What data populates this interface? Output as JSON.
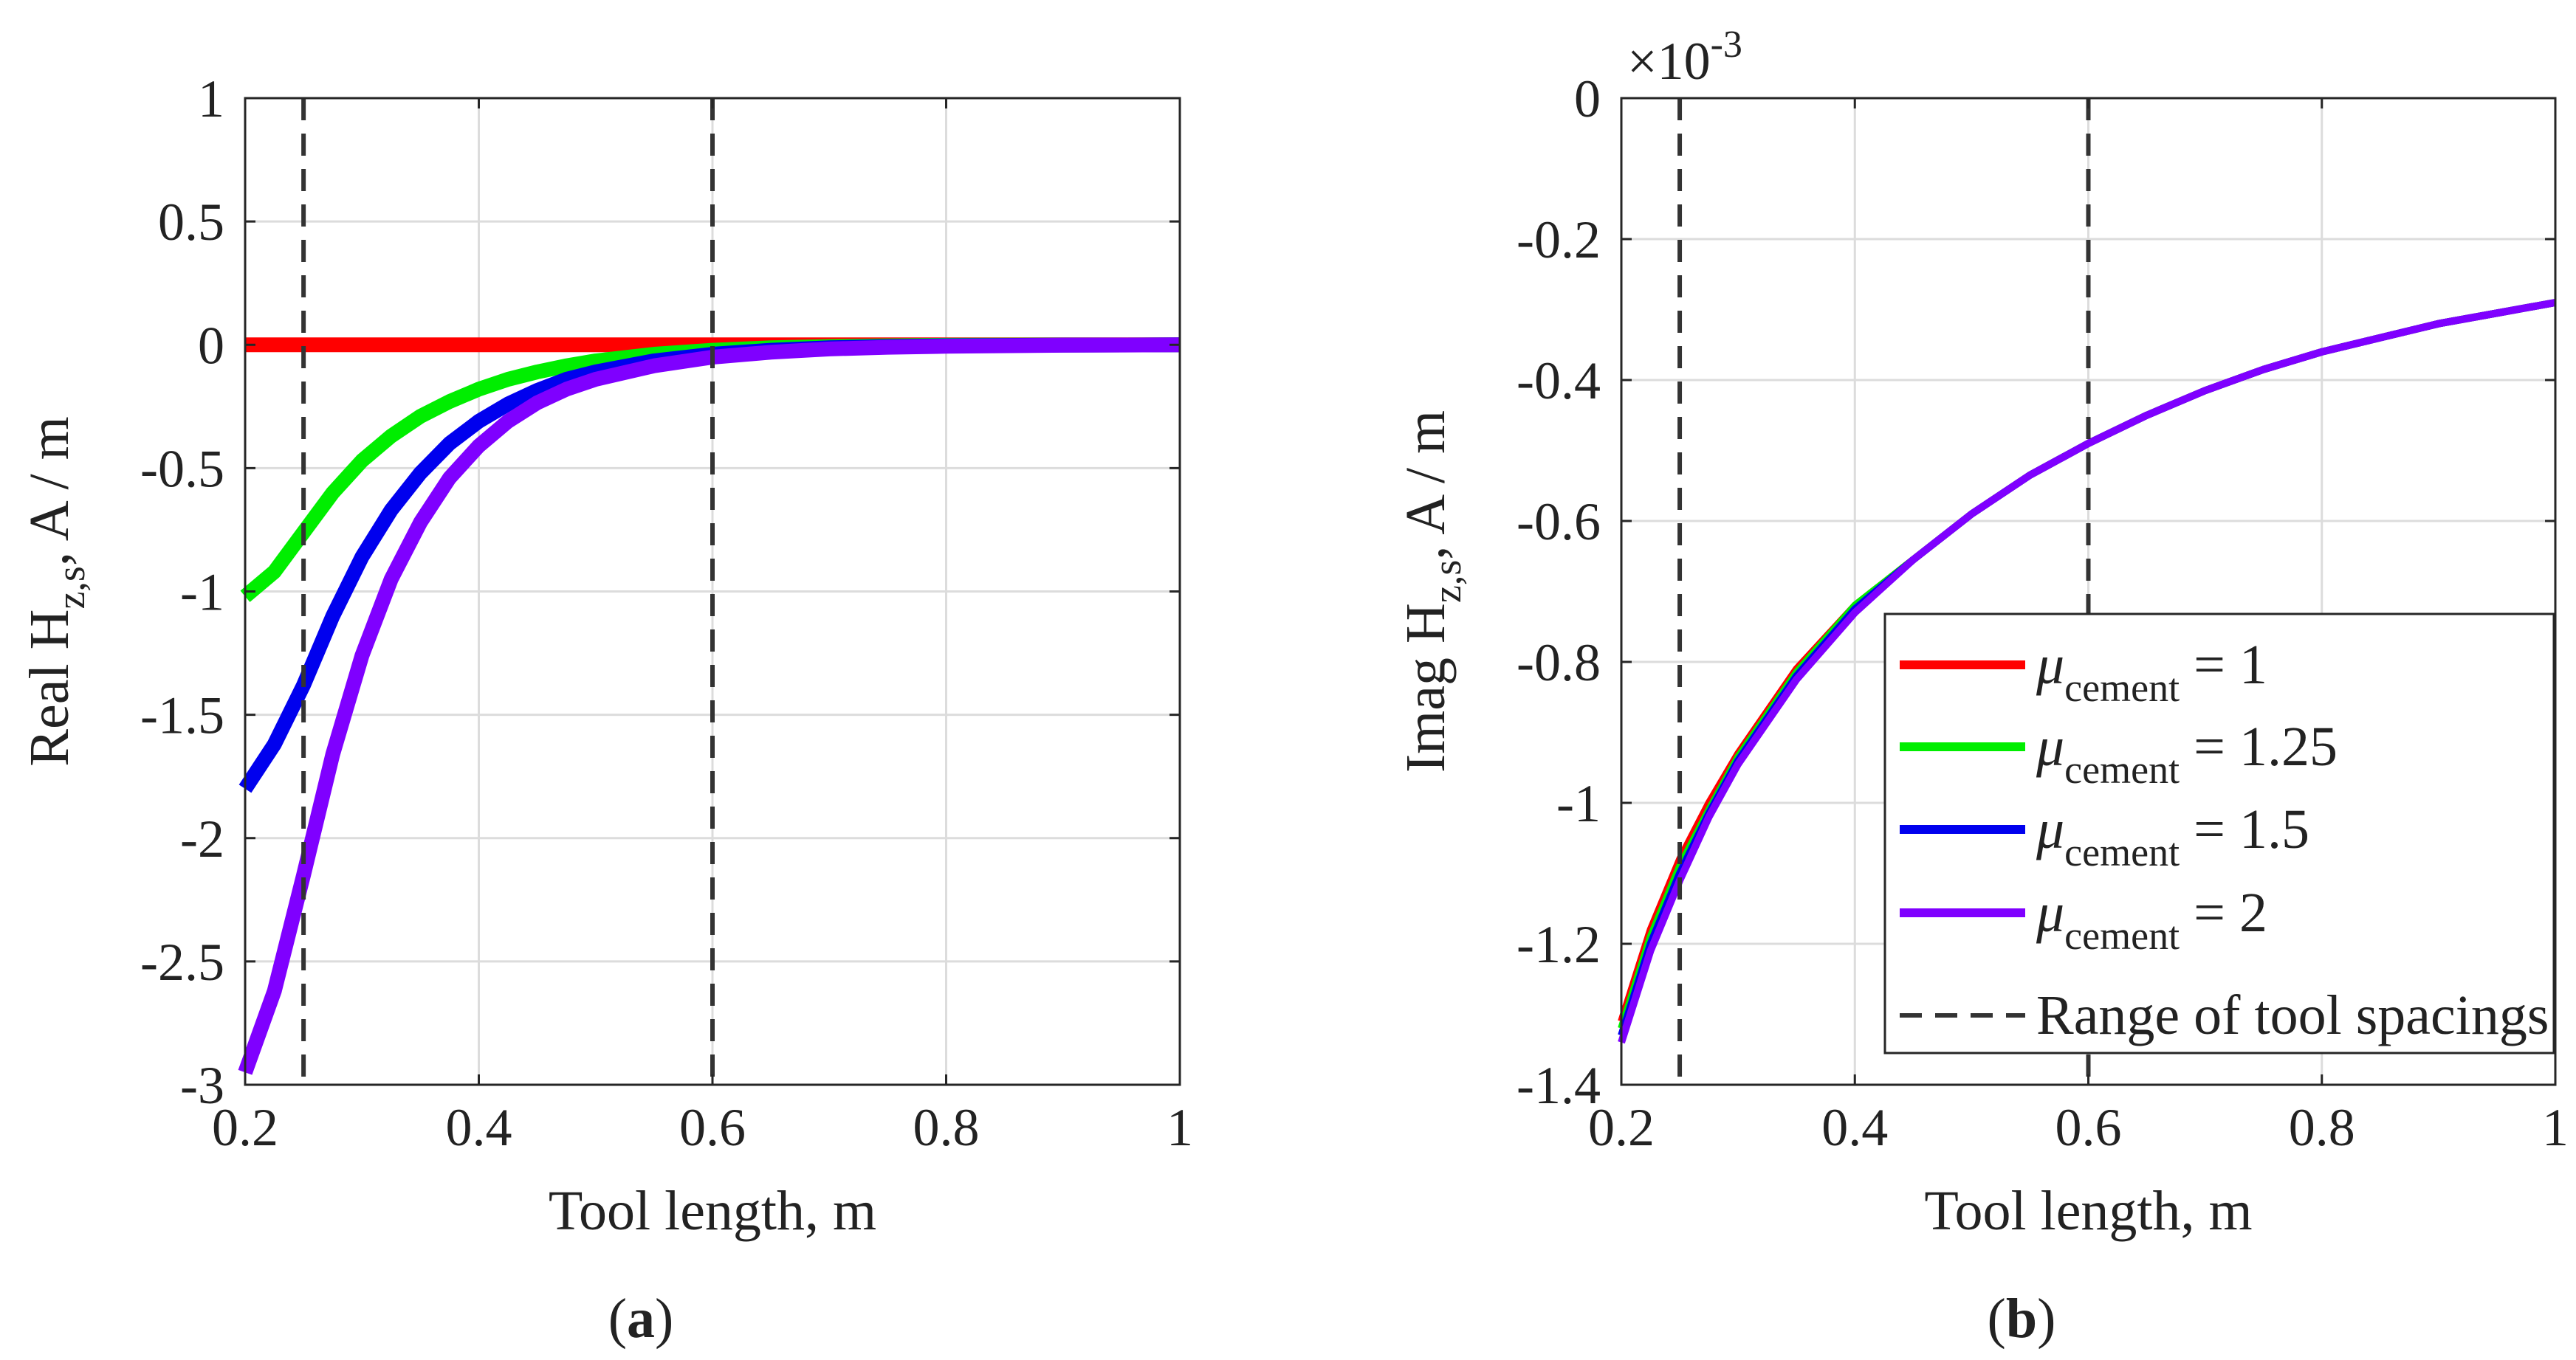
{
  "figure": {
    "panels": [
      {
        "id": "a",
        "caption_prefix": "(",
        "caption_letter": "a",
        "caption_suffix": ")"
      },
      {
        "id": "b",
        "caption_prefix": "(",
        "caption_letter": "b",
        "caption_suffix": ")"
      }
    ]
  },
  "chart_data": [
    {
      "type": "line",
      "panel": "a",
      "xlabel": "Tool length, m",
      "ylabel": {
        "prefix": "Real H",
        "subscript": "z,s",
        "suffix": ", A / m"
      },
      "xlim": [
        0.2,
        1
      ],
      "ylim": [
        -3,
        1
      ],
      "xticks": [
        0.2,
        0.4,
        0.6,
        0.8,
        1
      ],
      "xtick_labels": [
        "0.2",
        "0.4",
        "0.6",
        "0.8",
        "1"
      ],
      "yticks": [
        -3,
        -2.5,
        -2,
        -1.5,
        -1,
        -0.5,
        0,
        0.5,
        1
      ],
      "ytick_labels": [
        "-3",
        "-2.5",
        "-2",
        "-1.5",
        "-1",
        "-0.5",
        "0",
        "0.5",
        "1"
      ],
      "grid": true,
      "x": [
        0.2,
        0.225,
        0.25,
        0.275,
        0.3,
        0.325,
        0.35,
        0.375,
        0.4,
        0.425,
        0.45,
        0.475,
        0.5,
        0.55,
        0.6,
        0.65,
        0.7,
        0.75,
        0.8,
        0.9,
        1.0
      ],
      "series": [
        {
          "name": "μ_cement = 1",
          "color": "#ff0000",
          "values": [
            0,
            0,
            0,
            0,
            0,
            0,
            0,
            0,
            0,
            0,
            0,
            0,
            0,
            0,
            0,
            0,
            0,
            0,
            0,
            0,
            0
          ]
        },
        {
          "name": "μ_cement = 1.25",
          "color": "#00ee00",
          "values": [
            -1.02,
            -0.92,
            -0.76,
            -0.6,
            -0.47,
            -0.37,
            -0.29,
            -0.23,
            -0.18,
            -0.14,
            -0.11,
            -0.085,
            -0.065,
            -0.038,
            -0.022,
            -0.012,
            -0.007,
            -0.004,
            -0.002,
            -0.001,
            0
          ]
        },
        {
          "name": "μ_cement = 1.5",
          "color": "#0000ee",
          "values": [
            -1.8,
            -1.62,
            -1.38,
            -1.1,
            -0.86,
            -0.67,
            -0.52,
            -0.4,
            -0.31,
            -0.24,
            -0.185,
            -0.14,
            -0.11,
            -0.065,
            -0.038,
            -0.022,
            -0.012,
            -0.007,
            -0.004,
            -0.001,
            0
          ]
        },
        {
          "name": "μ_cement = 2",
          "color": "#7f00ff",
          "values": [
            -2.95,
            -2.62,
            -2.15,
            -1.66,
            -1.26,
            -0.95,
            -0.72,
            -0.54,
            -0.41,
            -0.31,
            -0.235,
            -0.18,
            -0.14,
            -0.085,
            -0.05,
            -0.03,
            -0.017,
            -0.01,
            -0.006,
            -0.002,
            0
          ]
        }
      ],
      "reference_lines": [
        {
          "x": 0.25,
          "style": "dashed",
          "color": "#333333"
        },
        {
          "x": 0.6,
          "style": "dashed",
          "color": "#333333"
        }
      ]
    },
    {
      "type": "line",
      "panel": "b",
      "xlabel": "Tool length, m",
      "ylabel": {
        "prefix": "Imag H",
        "subscript": "z,s",
        "suffix": ", A / m"
      },
      "exponent_label": {
        "base": "×10",
        "exp": "-3"
      },
      "xlim": [
        0.2,
        1
      ],
      "ylim": [
        -1.4,
        0
      ],
      "xticks": [
        0.2,
        0.4,
        0.6,
        0.8,
        1
      ],
      "xtick_labels": [
        "0.2",
        "0.4",
        "0.6",
        "0.8",
        "1"
      ],
      "yticks": [
        -1.4,
        -1.2,
        -1,
        -0.8,
        -0.6,
        -0.4,
        -0.2,
        0
      ],
      "ytick_labels": [
        "-1.4",
        "-1.2",
        "-1",
        "-0.8",
        "-0.6",
        "-0.4",
        "-0.2",
        "0"
      ],
      "grid": true,
      "x": [
        0.2,
        0.225,
        0.25,
        0.275,
        0.3,
        0.35,
        0.4,
        0.45,
        0.5,
        0.55,
        0.6,
        0.65,
        0.7,
        0.75,
        0.8,
        0.85,
        0.9,
        0.95,
        1.0
      ],
      "series": [
        {
          "name": "μ_cement = 1",
          "color": "#ff0000",
          "values": [
            -1.31,
            -1.18,
            -1.08,
            -1.0,
            -0.93,
            -0.81,
            -0.72,
            -0.655,
            -0.59,
            -0.535,
            -0.49,
            -0.45,
            -0.415,
            -0.385,
            -0.36,
            -0.34,
            -0.32,
            -0.305,
            -0.29
          ]
        },
        {
          "name": "μ_cement = 1.25",
          "color": "#00ee00",
          "values": [
            -1.32,
            -1.19,
            -1.09,
            -1.01,
            -0.935,
            -0.815,
            -0.72,
            -0.655,
            -0.59,
            -0.535,
            -0.49,
            -0.45,
            -0.415,
            -0.385,
            -0.36,
            -0.34,
            -0.32,
            -0.305,
            -0.29
          ]
        },
        {
          "name": "μ_cement = 1.5",
          "color": "#0000ee",
          "values": [
            -1.33,
            -1.2,
            -1.1,
            -1.015,
            -0.94,
            -0.82,
            -0.725,
            -0.655,
            -0.59,
            -0.535,
            -0.49,
            -0.45,
            -0.415,
            -0.385,
            -0.36,
            -0.34,
            -0.32,
            -0.305,
            -0.29
          ]
        },
        {
          "name": "μ_cement = 2",
          "color": "#7f00ff",
          "values": [
            -1.34,
            -1.21,
            -1.11,
            -1.02,
            -0.945,
            -0.825,
            -0.73,
            -0.655,
            -0.59,
            -0.535,
            -0.49,
            -0.45,
            -0.415,
            -0.385,
            -0.36,
            -0.34,
            -0.32,
            -0.305,
            -0.29
          ]
        }
      ],
      "reference_lines": [
        {
          "x": 0.25,
          "style": "dashed",
          "color": "#333333"
        },
        {
          "x": 0.6,
          "style": "dashed",
          "color": "#333333"
        }
      ],
      "legend": {
        "location": "bottom-right",
        "entries": [
          {
            "symbol": "μ",
            "sub": "cement",
            "value_text": " = 1",
            "color": "#ff0000",
            "style": "solid"
          },
          {
            "symbol": "μ",
            "sub": "cement",
            "value_text": " = 1.25",
            "color": "#00ee00",
            "style": "solid"
          },
          {
            "symbol": "μ",
            "sub": "cement",
            "value_text": " = 1.5",
            "color": "#0000ee",
            "style": "solid"
          },
          {
            "symbol": "μ",
            "sub": "cement",
            "value_text": " = 2",
            "color": "#7f00ff",
            "style": "solid"
          },
          {
            "text": "Range of tool spacings",
            "color": "#333333",
            "style": "dashed"
          }
        ]
      }
    }
  ]
}
